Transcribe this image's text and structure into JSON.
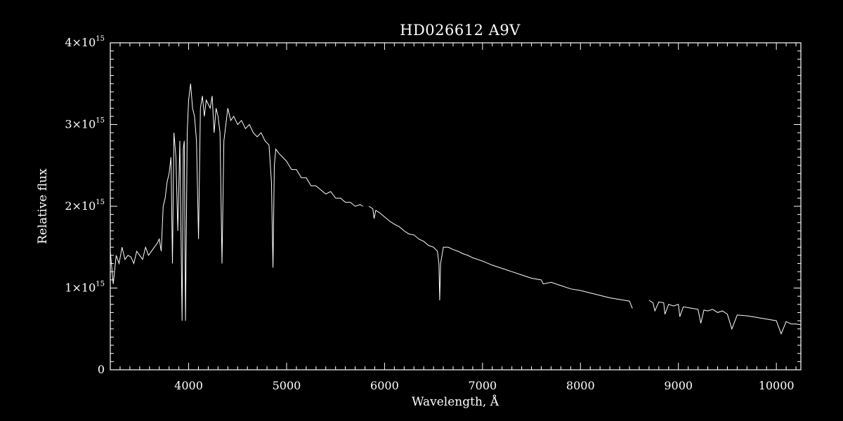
{
  "chart_data": {
    "type": "line",
    "title": "HD026612  A9V",
    "xlabel": "Wavelength, Å",
    "ylabel": "Relative flux",
    "xlim": [
      3200,
      10250
    ],
    "ylim": [
      0,
      4000000000000000.0
    ],
    "x_ticks": [
      4000,
      5000,
      6000,
      7000,
      8000,
      9000,
      10000
    ],
    "x_tick_labels": [
      "4000",
      "5000",
      "6000",
      "7000",
      "8000",
      "9000",
      "10000"
    ],
    "y_ticks": [
      0,
      1000000000000000.0,
      2000000000000000.0,
      3000000000000000.0,
      4000000000000000.0
    ],
    "y_tick_labels": [
      {
        "base": "0",
        "exp": ""
      },
      {
        "base": "1×10",
        "exp": "15"
      },
      {
        "base": "2×10",
        "exp": "15"
      },
      {
        "base": "3×10",
        "exp": "15"
      },
      {
        "base": "4×10",
        "exp": "15"
      }
    ],
    "grid": false,
    "line_color": "#ffffff",
    "background": "#000000",
    "series": [
      {
        "segments": [
          {
            "x": [
              3200,
              3230,
              3260,
              3290,
              3320,
              3350,
              3380,
              3410,
              3440,
              3470,
              3500,
              3530,
              3560,
              3590,
              3620,
              3650,
              3680,
              3700,
              3720,
              3740,
              3760,
              3780,
              3800,
              3820,
              3835,
              3850,
              3870,
              3889,
              3910,
              3933,
              3945,
              3955,
              3968,
              3985,
              4000,
              4020,
              4040,
              4060,
              4080,
              4101,
              4120,
              4140,
              4160,
              4180,
              4200,
              4220,
              4240,
              4260,
              4280,
              4300,
              4320,
              4340,
              4360,
              4380,
              4400,
              4430,
              4460,
              4500,
              4540,
              4580,
              4620,
              4660,
              4700,
              4740,
              4780,
              4820,
              4845,
              4861,
              4875,
              4890,
              4920,
              4960,
              5000,
              5050,
              5100,
              5150,
              5200,
              5250,
              5300,
              5350,
              5400,
              5450,
              5500,
              5550,
              5600,
              5650,
              5700,
              5750,
              5780
            ],
            "y": [
              1450000000000000.0,
              1050000000000000.0,
              1400000000000000.0,
              1300000000000000.0,
              1500000000000000.0,
              1350000000000000.0,
              1400000000000000.0,
              1380000000000000.0,
              1300000000000000.0,
              1450000000000000.0,
              1400000000000000.0,
              1350000000000000.0,
              1500000000000000.0,
              1400000000000000.0,
              1450000000000000.0,
              1500000000000000.0,
              1550000000000000.0,
              1600000000000000.0,
              1450000000000000.0,
              2000000000000000.0,
              2100000000000000.0,
              2300000000000000.0,
              2400000000000000.0,
              2600000000000000.0,
              1300000000000000.0,
              2900000000000000.0,
              2600000000000000.0,
              1700000000000000.0,
              2800000000000000.0,
              600000000000000.0,
              2700000000000000.0,
              2800000000000000.0,
              600000000000000.0,
              2900000000000000.0,
              3300000000000000.0,
              3500000000000000.0,
              3200000000000000.0,
              3100000000000000.0,
              2800000000000000.0,
              1600000000000000.0,
              3200000000000000.0,
              3350000000000000.0,
              3100000000000000.0,
              3300000000000000.0,
              3250000000000000.0,
              3200000000000000.0,
              3350000000000000.0,
              2900000000000000.0,
              3200000000000000.0,
              3100000000000000.0,
              2900000000000000.0,
              1300000000000000.0,
              2800000000000000.0,
              3000000000000000.0,
              3200000000000000.0,
              3050000000000000.0,
              3100000000000000.0,
              3000000000000000.0,
              3050000000000000.0,
              2950000000000000.0,
              3000000000000000.0,
              2900000000000000.0,
              2850000000000000.0,
              2900000000000000.0,
              2800000000000000.0,
              2750000000000000.0,
              2300000000000000.0,
              1250000000000000.0,
              2500000000000000.0,
              2700000000000000.0,
              2650000000000000.0,
              2600000000000000.0,
              2550000000000000.0,
              2450000000000000.0,
              2450000000000000.0,
              2350000000000000.0,
              2350000000000000.0,
              2250000000000000.0,
              2250000000000000.0,
              2200000000000000.0,
              2150000000000000.0,
              2180000000000000.0,
              2100000000000000.0,
              2100000000000000.0,
              2050000000000000.0,
              2050000000000000.0,
              2000000000000000.0,
              2020000000000000.0,
              2000000000000000.0
            ]
          },
          {
            "x": [
              5840,
              5880,
              5893,
              5910,
              5950,
              6000,
              6050,
              6100,
              6150,
              6200,
              6250,
              6300,
              6350,
              6400,
              6450,
              6500,
              6540,
              6555,
              6563,
              6572,
              6600,
              6650,
              6700,
              6750,
              6800,
              6850,
              6900,
              6950,
              7000,
              7100,
              7200,
              7300,
              7400,
              7500,
              7600,
              7620,
              7700,
              7800,
              7900,
              8000,
              8100,
              8200,
              8300,
              8400,
              8500,
              8530
            ],
            "y": [
              2000000000000000.0,
              1970000000000000.0,
              1850000000000000.0,
              1950000000000000.0,
              1920000000000000.0,
              1870000000000000.0,
              1820000000000000.0,
              1780000000000000.0,
              1750000000000000.0,
              1700000000000000.0,
              1660000000000000.0,
              1650000000000000.0,
              1600000000000000.0,
              1570000000000000.0,
              1520000000000000.0,
              1500000000000000.0,
              1450000000000000.0,
              1300000000000000.0,
              850000000000000.0,
              1300000000000000.0,
              1500000000000000.0,
              1500000000000000.0,
              1470000000000000.0,
              1450000000000000.0,
              1420000000000000.0,
              1400000000000000.0,
              1370000000000000.0,
              1350000000000000.0,
              1330000000000000.0,
              1280000000000000.0,
              1240000000000000.0,
              1200000000000000.0,
              1160000000000000.0,
              1120000000000000.0,
              1100000000000000.0,
              1050000000000000.0,
              1070000000000000.0,
              1030000000000000.0,
              990000000000000.0,
              970000000000000.0,
              940000000000000.0,
              910000000000000.0,
              880000000000000.0,
              860000000000000.0,
              840000000000000.0,
              750000000000000.0
            ]
          },
          {
            "x": [
              8700,
              8740,
              8760,
              8800,
              8850,
              8862,
              8900,
              8950,
              9000,
              9014,
              9050,
              9100,
              9150,
              9200,
              9229,
              9260,
              9300,
              9350,
              9400,
              9450,
              9500,
              9546,
              9600,
              9700,
              9800,
              9900,
              10000,
              10049,
              10100,
              10150,
              10200,
              10250
            ],
            "y": [
              850000000000000.0,
              820000000000000.0,
              720000000000000.0,
              830000000000000.0,
              820000000000000.0,
              680000000000000.0,
              800000000000000.0,
              780000000000000.0,
              800000000000000.0,
              650000000000000.0,
              770000000000000.0,
              760000000000000.0,
              750000000000000.0,
              740000000000000.0,
              570000000000000.0,
              730000000000000.0,
              720000000000000.0,
              740000000000000.0,
              700000000000000.0,
              720000000000000.0,
              680000000000000.0,
              500000000000000.0,
              670000000000000.0,
              660000000000000.0,
              640000000000000.0,
              620000000000000.0,
              600000000000000.0,
              440000000000000.0,
              590000000000000.0,
              560000000000000.0,
              560000000000000.0,
              550000000000000.0
            ]
          }
        ]
      }
    ]
  }
}
